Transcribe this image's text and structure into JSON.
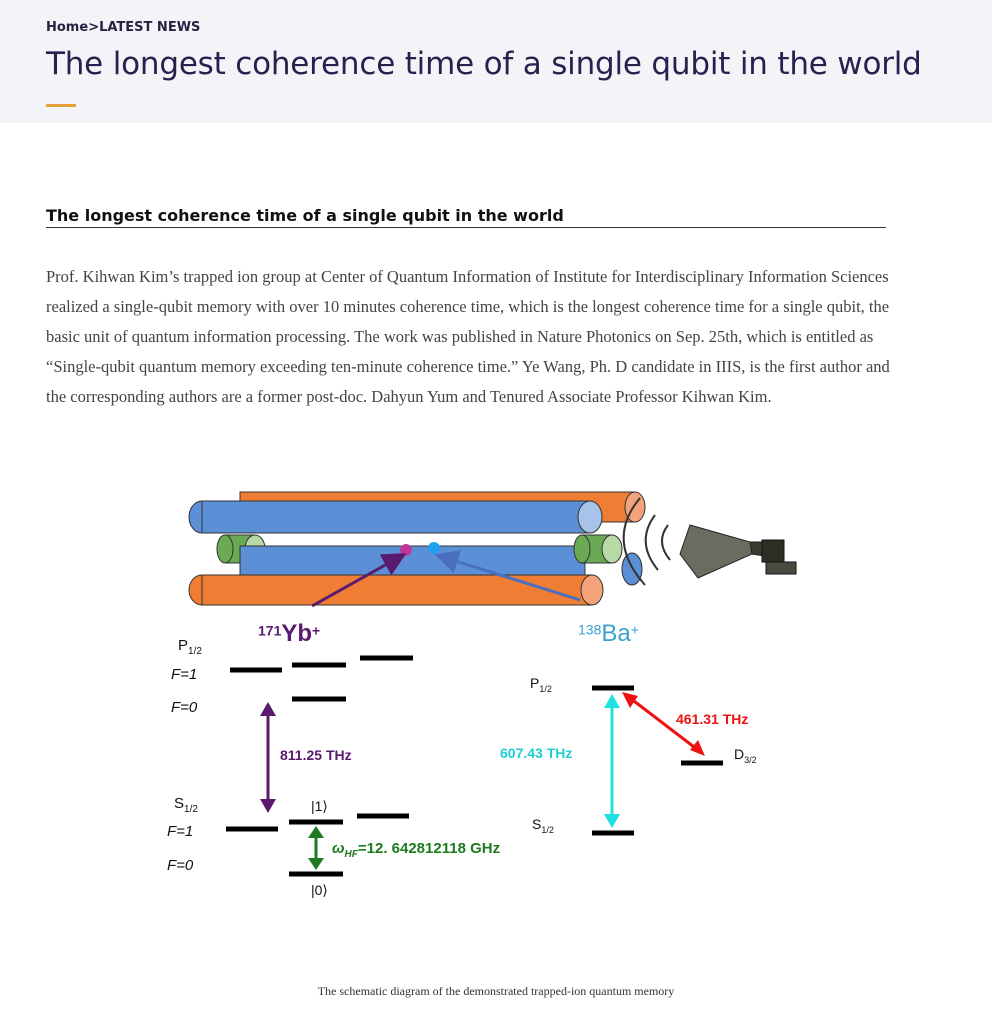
{
  "breadcrumb": {
    "home": "Home",
    "separator": ">",
    "current": "LATEST NEWS"
  },
  "page_title": "The longest coherence time of a single qubit in the world",
  "article": {
    "title": "The longest coherence time of a single qubit in the world",
    "body": "Prof. Kihwan Kim’s trapped ion group at Center of Quantum Information of Institute for Interdisciplinary Information Sciences realized a single-qubit memory with over 10 minutes coherence time, which is the longest coherence time for a single qubit, the basic unit of quantum information processing. The work was published in Nature Photonics on Sep. 25th, which is entitled as “Single-qubit quantum memory exceeding ten-minute coherence time.” Ye Wang, Ph. D candidate in IIIS, is the first author and the corresponding authors are a former post-doc. Dahyun Yum and Tenured Associate Professor Kihwan Kim."
  },
  "figure": {
    "yb": {
      "mass": "171",
      "symbol": "Yb",
      "charge": "+"
    },
    "ba": {
      "mass": "138",
      "symbol": "Ba",
      "charge": "+"
    },
    "yb_p_label": "P",
    "yb_p_sub": "1/2",
    "yb_p_f1": "F=1",
    "yb_p_f0": "F=0",
    "yb_s_label": "S",
    "yb_s_sub": "1/2",
    "yb_s_f1": "F=1",
    "yb_s_f0": "F=0",
    "yb_transition": "811.25 THz",
    "ket1": "|1⟩",
    "ket0": "|0⟩",
    "hf_symbol": "ω",
    "hf_sub": "HF",
    "hf_value": "=12. 642812118 GHz",
    "ba_p_label": "P",
    "ba_p_sub": "1/2",
    "ba_s_label": "S",
    "ba_s_sub": "1/2",
    "ba_d_label": "D",
    "ba_d_sub": "3/2",
    "ba_transition": "607.43 THz",
    "ba_d_transition": "461.31 THz"
  },
  "caption": "The schematic diagram of the demonstrated trapped-ion quantum memory",
  "colors": {
    "header_bg": "#f3f4f8",
    "accent": "#e8a03a",
    "title": "#2b1f4e",
    "yb": "#5a1a6e",
    "ba": "#3aa0d0",
    "cyan": "#20e0e0",
    "red": "#ee1111",
    "green": "#1e7a1e",
    "rod_blue": "#5b8fd6",
    "rod_orange": "#ef7d33",
    "rod_green": "#6aaa55"
  }
}
